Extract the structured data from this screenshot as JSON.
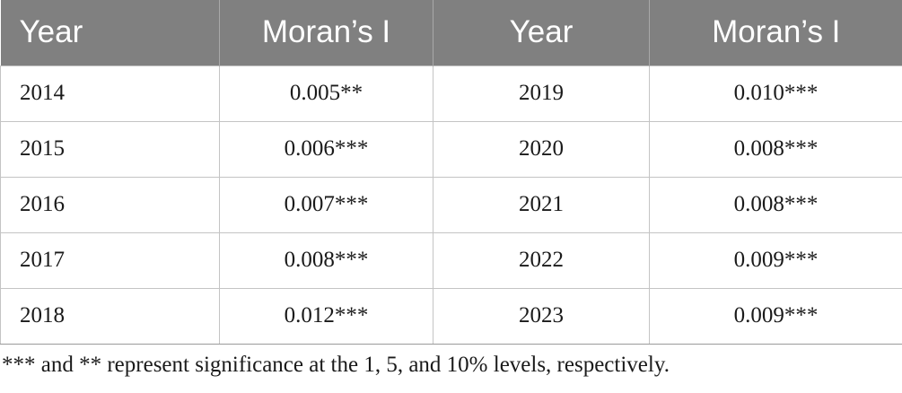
{
  "table": {
    "headers": [
      "Year",
      "Moran’s I",
      "Year",
      "Moran’s I"
    ],
    "rows": [
      [
        "2014",
        "0.005**",
        "2019",
        "0.010***"
      ],
      [
        "2015",
        "0.006***",
        "2020",
        "0.008***"
      ],
      [
        "2016",
        "0.007***",
        "2021",
        "0.008***"
      ],
      [
        "2017",
        "0.008***",
        "2022",
        "0.009***"
      ],
      [
        "2018",
        "0.012***",
        "2023",
        "0.009***"
      ]
    ]
  },
  "footnote": "*** and ** represent significance at the 1, 5, and 10% levels, respectively.",
  "colors": {
    "header_bg": "#808080",
    "header_text": "#ffffff",
    "body_text": "#1a1a1a",
    "grid": "#c4c4c4"
  }
}
